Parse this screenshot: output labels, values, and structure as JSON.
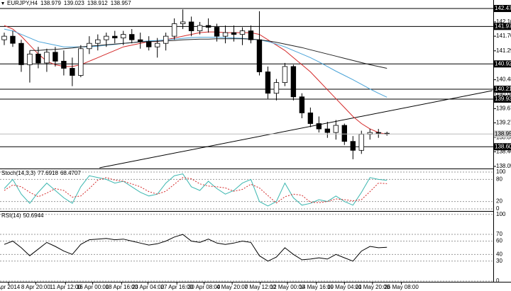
{
  "chart_data": {
    "type": "candlestick",
    "symbol": "EURJPY,H4",
    "xlim": [
      -0.5,
      57.5
    ],
    "xticks": [
      {
        "value": 0.5,
        "label": "Apr 2014"
      },
      {
        "value": 3.7,
        "label": "8 Apr 20:00"
      },
      {
        "value": 7.2,
        "label": "11 Apr 12:00"
      },
      {
        "value": 10.4,
        "label": "16 Apr 00:00"
      },
      {
        "value": 13.8,
        "label": "18 Apr 16:00"
      },
      {
        "value": 16.9,
        "label": "23 Apr 04:00"
      },
      {
        "value": 20.3,
        "label": "27 Apr 16:00"
      },
      {
        "value": 23.5,
        "label": "30 Apr 08:00"
      },
      {
        "value": 26.8,
        "label": "4 May 20:00"
      },
      {
        "value": 30.1,
        "label": "7 May 12:00"
      },
      {
        "value": 33.3,
        "label": "12 May 00:00"
      },
      {
        "value": 36.7,
        "label": "14 May 16:00"
      },
      {
        "value": 40,
        "label": "19 May 04:00"
      },
      {
        "value": 43.3,
        "label": "21 May 20:00"
      },
      {
        "value": 46.7,
        "label": "26 May 08:00"
      }
    ],
    "ylim": [
      138.01,
      142.715
    ],
    "yticks": [
      {
        "value": 142.1,
        "label": "142.10"
      },
      {
        "value": 141.7,
        "label": "141.70"
      },
      {
        "value": 141.29,
        "label": "141.290"
      },
      {
        "value": 140.48,
        "label": "140.480"
      },
      {
        "value": 140.08,
        "label": "140.080"
      },
      {
        "value": 139.67,
        "label": "139.670"
      },
      {
        "value": 139.27,
        "label": "139.270"
      },
      {
        "value": 138.86,
        "label": "138.860"
      },
      {
        "value": 138.46,
        "label": "138.460"
      },
      {
        "value": 138.05,
        "label": "138.050"
      }
    ],
    "levels": [
      {
        "value": 142.477,
        "label": "142.477"
      },
      {
        "value": 141.974,
        "label": "141.974"
      },
      {
        "value": 140.923,
        "label": "140.923"
      },
      {
        "value": 140.213,
        "label": "140.213"
      },
      {
        "value": 139.936,
        "label": "139.936"
      },
      {
        "value": 138.6,
        "label": "138.600"
      }
    ],
    "open": [
      141.6,
      141.7,
      141.5,
      140.9,
      141.2,
      140.95,
      141.25,
      141.0,
      140.8,
      140.6,
      141.35,
      141.5,
      141.6,
      141.7,
      141.65,
      141.75,
      141.6,
      141.55,
      141.4,
      141.5,
      141.7,
      142.05,
      142.1,
      141.85,
      142.0,
      141.95,
      141.7,
      141.8,
      141.75,
      141.85,
      141.6,
      140.7,
      140.1,
      140.4,
      140.85,
      140.0,
      139.55,
      139.25,
      139.1,
      139.0,
      139.2,
      138.75,
      138.5,
      138.95,
      139.0,
      138.979
    ],
    "high": [
      141.8,
      141.85,
      141.6,
      141.3,
      141.4,
      141.35,
      141.4,
      141.3,
      141.1,
      141.45,
      141.7,
      141.75,
      141.8,
      141.85,
      141.85,
      141.9,
      141.8,
      141.7,
      141.65,
      141.8,
      142.2,
      142.45,
      142.25,
      142.1,
      142.2,
      142.05,
      142.0,
      142.0,
      141.95,
      142.0,
      142.4,
      140.85,
      140.5,
      140.95,
      140.9,
      140.1,
      139.7,
      139.45,
      139.3,
      139.35,
      139.25,
      138.9,
      139.05,
      139.1,
      139.1,
      139.023
    ],
    "low": [
      141.45,
      141.4,
      140.7,
      140.4,
      140.8,
      140.7,
      140.85,
      140.6,
      140.3,
      140.55,
      141.2,
      141.3,
      141.4,
      141.5,
      141.45,
      141.5,
      141.35,
      141.3,
      141.1,
      141.3,
      141.6,
      141.9,
      141.7,
      141.75,
      141.8,
      141.55,
      141.5,
      141.55,
      141.45,
      141.5,
      140.6,
      139.95,
      139.9,
      140.3,
      139.9,
      139.4,
      139.15,
      139.0,
      138.85,
      138.8,
      138.65,
      138.25,
      138.4,
      138.8,
      138.85,
      138.912
    ],
    "close": [
      141.7,
      141.5,
      140.9,
      141.2,
      140.95,
      141.25,
      141.0,
      140.8,
      140.6,
      141.35,
      141.5,
      141.6,
      141.7,
      141.65,
      141.75,
      141.6,
      141.55,
      141.4,
      141.5,
      141.7,
      142.05,
      142.1,
      141.85,
      142.0,
      141.95,
      141.7,
      141.8,
      141.75,
      141.85,
      141.6,
      140.7,
      140.1,
      140.4,
      140.85,
      140.0,
      139.55,
      139.25,
      139.1,
      139.0,
      139.2,
      138.75,
      138.5,
      138.95,
      139.0,
      138.98,
      138.957
    ],
    "ma_lines": [
      {
        "color": "#d42a2a",
        "values": [
          142.0,
          141.9,
          141.7,
          141.45,
          141.2,
          141.0,
          140.9,
          140.85,
          140.85,
          140.9,
          141.0,
          141.1,
          141.2,
          141.3,
          141.4,
          141.45,
          141.5,
          141.55,
          141.55,
          141.6,
          141.65,
          141.7,
          141.75,
          141.8,
          141.82,
          141.82,
          141.8,
          141.8,
          141.8,
          141.8,
          141.75,
          141.6,
          141.45,
          141.3,
          141.1,
          140.9,
          140.7,
          140.45,
          140.2,
          139.95,
          139.7,
          139.45,
          139.25,
          139.1,
          139.0,
          138.95
        ]
      },
      {
        "color": "#4aa3d8",
        "values": [
          141.9,
          141.85,
          141.75,
          141.65,
          141.55,
          141.5,
          141.45,
          141.4,
          141.4,
          141.4,
          141.4,
          141.42,
          141.45,
          141.47,
          141.5,
          141.52,
          141.55,
          141.57,
          141.58,
          141.6,
          141.62,
          141.64,
          141.66,
          141.67,
          141.67,
          141.67,
          141.66,
          141.65,
          141.64,
          141.62,
          141.6,
          141.55,
          141.48,
          141.4,
          141.3,
          141.2,
          141.1,
          140.98,
          140.85,
          140.72,
          140.6,
          140.48,
          140.35,
          140.22,
          140.1,
          139.99
        ]
      },
      {
        "color": "#222222",
        "values": [
          null,
          null,
          null,
          141.3,
          141.3,
          141.32,
          141.33,
          141.35,
          141.37,
          141.4,
          141.42,
          141.44,
          141.46,
          141.48,
          141.5,
          141.52,
          141.54,
          141.55,
          141.56,
          141.57,
          141.58,
          141.6,
          141.61,
          141.62,
          141.62,
          141.63,
          141.63,
          141.63,
          141.63,
          141.62,
          141.6,
          141.57,
          141.53,
          141.48,
          141.43,
          141.38,
          141.32,
          141.26,
          141.2,
          141.14,
          141.08,
          141.02,
          140.96,
          140.9,
          140.85,
          140.8
        ]
      }
    ],
    "trendline": {
      "x": [
        11.2,
        57.4
      ],
      "y": [
        138.01,
        140.174
      ]
    },
    "stoch": {
      "label": "Stoch(14,3,3)",
      "ylim": [
        -3.8,
        107.7
      ],
      "yticks": [
        100,
        80,
        20,
        0
      ],
      "main": {
        "color": "#3cb7b0",
        "values": [
          55,
          80,
          40,
          15,
          45,
          70,
          50,
          30,
          15,
          60,
          90,
          85,
          80,
          70,
          75,
          60,
          45,
          35,
          40,
          70,
          90,
          95,
          60,
          50,
          75,
          55,
          40,
          50,
          70,
          80,
          20,
          8,
          20,
          70,
          30,
          10,
          15,
          25,
          20,
          35,
          20,
          10,
          45,
          85,
          80,
          77.6918
        ]
      },
      "signal": {
        "color": "#d42a2a",
        "values": [
          50,
          65,
          60,
          45,
          33,
          43,
          55,
          50,
          32,
          35,
          55,
          78,
          85,
          78,
          75,
          68,
          60,
          47,
          40,
          48,
          67,
          85,
          82,
          68,
          62,
          60,
          57,
          48,
          53,
          67,
          57,
          36,
          16,
          33,
          40,
          37,
          18,
          17,
          20,
          27,
          25,
          22,
          25,
          47,
          70,
          68.4707
        ]
      }
    },
    "rsi": {
      "label": "RSI(14)",
      "ylim": [
        -1,
        104
      ],
      "yticks": [
        100,
        70,
        60,
        40,
        30,
        0
      ],
      "color": "#000000",
      "values": [
        55,
        60,
        50,
        38,
        48,
        58,
        52,
        45,
        40,
        55,
        62,
        63,
        64,
        62,
        63,
        60,
        57,
        54,
        56,
        60,
        66,
        70,
        60,
        58,
        63,
        57,
        55,
        57,
        60,
        58,
        38,
        30,
        36,
        50,
        40,
        32,
        33,
        35,
        33,
        40,
        35,
        30,
        45,
        52,
        50,
        50.6944
      ]
    }
  }
}
